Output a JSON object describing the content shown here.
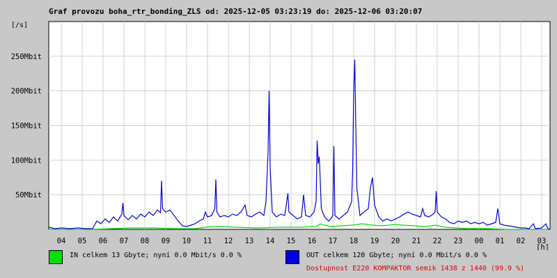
{
  "title": "Graf provozu boha_rtr_bonding_ZLS od: 2025-12-05 03:23:19 do: 2025-12-06 03:20:07",
  "ylabel": "[/s]",
  "xunit": "[h]",
  "legend": {
    "in": {
      "label": "IN celkem 13 Gbyte; nyní   0.0 Mbit/s 0.0 %",
      "color": "#00e000"
    },
    "out": {
      "label": "OUT celkem 120 Gbyte; nyní   0.0 Mbit/s 0.0 %",
      "color": "#0000e0"
    }
  },
  "availability": "Dostupnost E220 KOMPAKTOR semik 1438 z 1440 (99.9 %)",
  "colors": {
    "background": "#c8c8c8",
    "plot_bg": "#ffffff",
    "grid": "#d0d0d0",
    "availability": "#e00000"
  },
  "chart_data": {
    "type": "line",
    "title": "Graf provozu boha_rtr_bonding_ZLS od: 2025-12-05 03:23:19 do: 2025-12-06 03:20:07",
    "ylabel": "[/s]",
    "xlabel": "[h]",
    "x_unit": "hours since 03:23",
    "xlim": [
      0,
      24
    ],
    "ylim": [
      0,
      300
    ],
    "y_unit": "Mbit/s",
    "grid": true,
    "xticks": [
      {
        "x": 0.6,
        "label": "04"
      },
      {
        "x": 1.6,
        "label": "05"
      },
      {
        "x": 2.6,
        "label": "06"
      },
      {
        "x": 3.6,
        "label": "07"
      },
      {
        "x": 4.6,
        "label": "08"
      },
      {
        "x": 5.6,
        "label": "09"
      },
      {
        "x": 6.6,
        "label": "10"
      },
      {
        "x": 7.6,
        "label": "11"
      },
      {
        "x": 8.6,
        "label": "12"
      },
      {
        "x": 9.6,
        "label": "13"
      },
      {
        "x": 10.6,
        "label": "14"
      },
      {
        "x": 11.6,
        "label": "15"
      },
      {
        "x": 12.6,
        "label": "16"
      },
      {
        "x": 13.6,
        "label": "17"
      },
      {
        "x": 14.6,
        "label": "18"
      },
      {
        "x": 15.6,
        "label": "19"
      },
      {
        "x": 16.6,
        "label": "20"
      },
      {
        "x": 17.6,
        "label": "21"
      },
      {
        "x": 18.6,
        "label": "22"
      },
      {
        "x": 19.6,
        "label": "23"
      },
      {
        "x": 20.6,
        "label": "00"
      },
      {
        "x": 21.6,
        "label": "01"
      },
      {
        "x": 22.6,
        "label": "02"
      },
      {
        "x": 23.6,
        "label": "03"
      }
    ],
    "yticks": [
      {
        "y": 50,
        "label": "50Mbit"
      },
      {
        "y": 100,
        "label": "100Mbit"
      },
      {
        "y": 150,
        "label": "150Mbit"
      },
      {
        "y": 200,
        "label": "200Mbit"
      },
      {
        "y": 250,
        "label": "250Mbit"
      }
    ],
    "series": [
      {
        "name": "OUT",
        "color": "#0000e0",
        "points": [
          [
            0,
            3
          ],
          [
            0.3,
            1
          ],
          [
            0.6,
            2
          ],
          [
            1,
            1
          ],
          [
            1.4,
            2
          ],
          [
            1.8,
            1
          ],
          [
            2.1,
            1
          ],
          [
            2.3,
            12
          ],
          [
            2.5,
            8
          ],
          [
            2.7,
            15
          ],
          [
            2.9,
            10
          ],
          [
            3.1,
            18
          ],
          [
            3.3,
            12
          ],
          [
            3.5,
            22
          ],
          [
            3.55,
            38
          ],
          [
            3.6,
            20
          ],
          [
            3.8,
            14
          ],
          [
            4.0,
            20
          ],
          [
            4.2,
            15
          ],
          [
            4.4,
            22
          ],
          [
            4.6,
            18
          ],
          [
            4.8,
            25
          ],
          [
            5.0,
            20
          ],
          [
            5.2,
            28
          ],
          [
            5.35,
            24
          ],
          [
            5.4,
            70
          ],
          [
            5.45,
            30
          ],
          [
            5.6,
            25
          ],
          [
            5.8,
            28
          ],
          [
            6.0,
            20
          ],
          [
            6.2,
            12
          ],
          [
            6.4,
            5
          ],
          [
            6.6,
            4
          ],
          [
            6.8,
            6
          ],
          [
            7.0,
            8
          ],
          [
            7.2,
            12
          ],
          [
            7.4,
            15
          ],
          [
            7.5,
            25
          ],
          [
            7.6,
            18
          ],
          [
            7.8,
            20
          ],
          [
            7.95,
            30
          ],
          [
            8.0,
            72
          ],
          [
            8.05,
            25
          ],
          [
            8.2,
            18
          ],
          [
            8.4,
            20
          ],
          [
            8.6,
            18
          ],
          [
            8.8,
            22
          ],
          [
            9.0,
            20
          ],
          [
            9.2,
            25
          ],
          [
            9.4,
            35
          ],
          [
            9.5,
            20
          ],
          [
            9.7,
            18
          ],
          [
            9.9,
            22
          ],
          [
            10.1,
            25
          ],
          [
            10.3,
            20
          ],
          [
            10.4,
            40
          ],
          [
            10.5,
            110
          ],
          [
            10.55,
            200
          ],
          [
            10.6,
            90
          ],
          [
            10.7,
            25
          ],
          [
            10.9,
            18
          ],
          [
            11.1,
            22
          ],
          [
            11.3,
            20
          ],
          [
            11.45,
            52
          ],
          [
            11.5,
            25
          ],
          [
            11.7,
            20
          ],
          [
            11.9,
            15
          ],
          [
            12.1,
            18
          ],
          [
            12.2,
            50
          ],
          [
            12.3,
            20
          ],
          [
            12.5,
            18
          ],
          [
            12.7,
            25
          ],
          [
            12.8,
            40
          ],
          [
            12.85,
            128
          ],
          [
            12.9,
            95
          ],
          [
            12.95,
            105
          ],
          [
            13.0,
            70
          ],
          [
            13.05,
            30
          ],
          [
            13.2,
            18
          ],
          [
            13.4,
            12
          ],
          [
            13.5,
            15
          ],
          [
            13.6,
            20
          ],
          [
            13.65,
            120
          ],
          [
            13.7,
            20
          ],
          [
            13.9,
            15
          ],
          [
            14.1,
            20
          ],
          [
            14.3,
            25
          ],
          [
            14.5,
            40
          ],
          [
            14.55,
            85
          ],
          [
            14.6,
            200
          ],
          [
            14.65,
            245
          ],
          [
            14.7,
            150
          ],
          [
            14.75,
            60
          ],
          [
            14.9,
            20
          ],
          [
            15.1,
            25
          ],
          [
            15.3,
            30
          ],
          [
            15.4,
            60
          ],
          [
            15.5,
            75
          ],
          [
            15.6,
            35
          ],
          [
            15.8,
            18
          ],
          [
            16.0,
            12
          ],
          [
            16.2,
            15
          ],
          [
            16.4,
            12
          ],
          [
            16.6,
            15
          ],
          [
            16.8,
            18
          ],
          [
            17.0,
            22
          ],
          [
            17.2,
            25
          ],
          [
            17.4,
            22
          ],
          [
            17.6,
            20
          ],
          [
            17.8,
            18
          ],
          [
            17.9,
            30
          ],
          [
            18.0,
            20
          ],
          [
            18.2,
            18
          ],
          [
            18.4,
            22
          ],
          [
            18.5,
            25
          ],
          [
            18.55,
            55
          ],
          [
            18.6,
            25
          ],
          [
            18.8,
            18
          ],
          [
            19.0,
            15
          ],
          [
            19.2,
            10
          ],
          [
            19.4,
            8
          ],
          [
            19.6,
            12
          ],
          [
            19.8,
            10
          ],
          [
            20.0,
            12
          ],
          [
            20.2,
            8
          ],
          [
            20.4,
            10
          ],
          [
            20.6,
            8
          ],
          [
            20.8,
            10
          ],
          [
            21.0,
            6
          ],
          [
            21.2,
            8
          ],
          [
            21.4,
            10
          ],
          [
            21.5,
            30
          ],
          [
            21.6,
            8
          ],
          [
            21.8,
            6
          ],
          [
            22.0,
            5
          ],
          [
            22.2,
            4
          ],
          [
            22.4,
            3
          ],
          [
            22.6,
            2
          ],
          [
            22.8,
            2
          ],
          [
            23.0,
            1
          ],
          [
            23.2,
            8
          ],
          [
            23.3,
            1
          ],
          [
            23.6,
            2
          ],
          [
            23.8,
            8
          ],
          [
            23.9,
            1
          ],
          [
            24,
            0
          ]
        ]
      },
      {
        "name": "IN",
        "color": "#00e000",
        "points": [
          [
            0,
            0
          ],
          [
            2.0,
            0
          ],
          [
            3.0,
            1
          ],
          [
            4.0,
            2
          ],
          [
            5.0,
            2
          ],
          [
            6.0,
            1
          ],
          [
            7.0,
            1
          ],
          [
            7.5,
            3
          ],
          [
            8.0,
            4
          ],
          [
            9.0,
            3
          ],
          [
            10.0,
            2
          ],
          [
            11.0,
            3
          ],
          [
            12.0,
            3
          ],
          [
            12.8,
            4
          ],
          [
            13.0,
            8
          ],
          [
            13.2,
            6
          ],
          [
            13.5,
            4
          ],
          [
            14.0,
            5
          ],
          [
            14.5,
            6
          ],
          [
            15.0,
            8
          ],
          [
            15.5,
            6
          ],
          [
            16.0,
            5
          ],
          [
            16.5,
            7
          ],
          [
            17.0,
            6
          ],
          [
            17.5,
            5
          ],
          [
            18.0,
            4
          ],
          [
            18.5,
            6
          ],
          [
            19.0,
            3
          ],
          [
            20.0,
            1
          ],
          [
            21.0,
            1
          ],
          [
            22.0,
            0
          ],
          [
            24,
            0
          ]
        ]
      }
    ]
  }
}
